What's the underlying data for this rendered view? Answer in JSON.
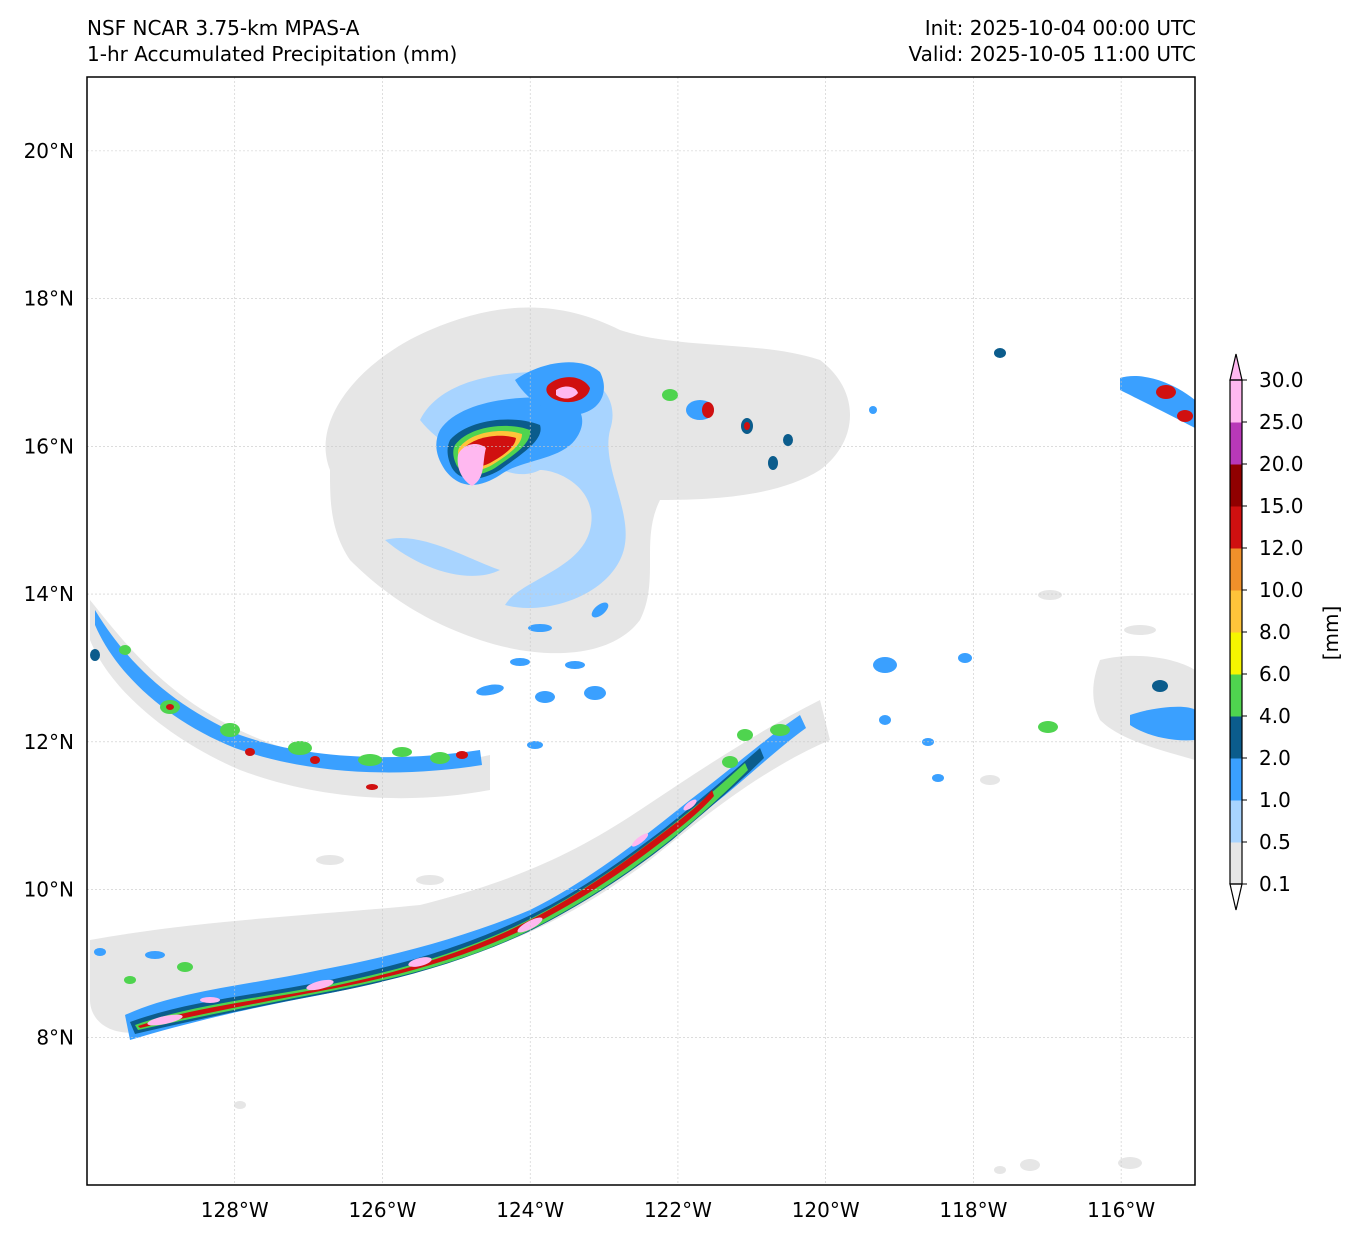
{
  "header": {
    "model": "NSF NCAR 3.75-km MPAS-A",
    "field": "1-hr Accumulated Precipitation (mm)",
    "init": "Init: 2025-10-04 00:00 UTC",
    "valid": "Valid: 2025-10-05 11:00 UTC"
  },
  "map": {
    "lat_ticks": [
      "20°N",
      "18°N",
      "16°N",
      "14°N",
      "12°N",
      "10°N",
      "8°N"
    ],
    "lon_ticks": [
      "128°W",
      "126°W",
      "124°W",
      "122°W",
      "120°W",
      "118°W",
      "116°W"
    ],
    "lat_range": [
      6.0,
      21.0
    ],
    "lon_range": [
      -130.0,
      -115.0
    ],
    "gridlines": true
  },
  "colorbar": {
    "unit_label": "[mm]",
    "levels": [
      "0.1",
      "0.5",
      "1.0",
      "2.0",
      "4.0",
      "6.0",
      "8.0",
      "10.0",
      "12.0",
      "15.0",
      "20.0",
      "25.0",
      "30.0"
    ],
    "colors": [
      "#e6e6e6",
      "#a8d4ff",
      "#3aa0ff",
      "#0b5c8c",
      "#4fd44f",
      "#f6f600",
      "#ffc43a",
      "#f0902a",
      "#d01010",
      "#900000",
      "#b838b8",
      "#ffb8f0"
    ]
  }
}
